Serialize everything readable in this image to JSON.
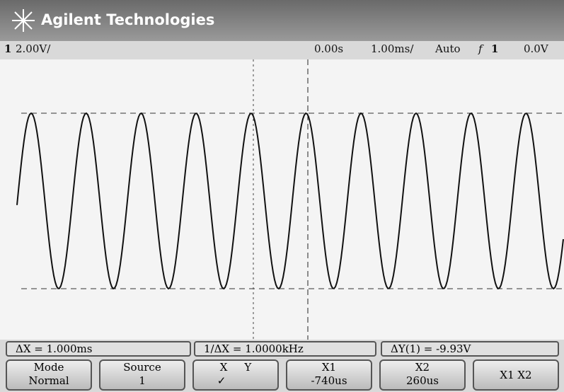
{
  "header": {
    "title": "Agilent Technologies"
  },
  "status": {
    "channel": "1",
    "scale": "2.00V/",
    "delay": "0.00s",
    "timebase": "1.00ms/",
    "mode": "Auto",
    "trigger_symbol": "f",
    "trigger_source": "1",
    "trigger_level": "0.0V"
  },
  "measurements": [
    "ΔX = 1.000ms",
    "1/ΔX = 1.0000kHz",
    "ΔY(1) = -9.93V"
  ],
  "softkeys": [
    {
      "label": "Mode",
      "value": "Normal"
    },
    {
      "label": "Source",
      "value": "1"
    },
    {
      "label": "X",
      "label2": "Y",
      "value": "✓"
    },
    {
      "label": "X1",
      "value": "-740us"
    },
    {
      "label": "X2",
      "value": "260us"
    },
    {
      "label": "X1 X2"
    }
  ]
}
